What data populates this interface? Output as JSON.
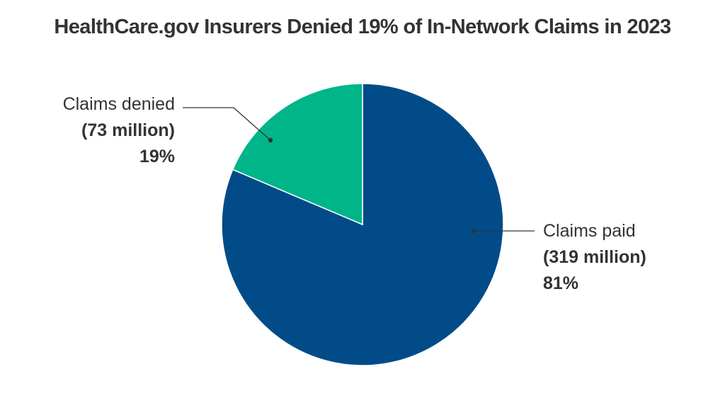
{
  "title": "HealthCare.gov Insurers Denied 19% of In-Network Claims in 2023",
  "colors": {
    "paid": "#024B89",
    "denied": "#00B588",
    "leader": "#333333"
  },
  "labels": {
    "denied": {
      "name": "Claims denied",
      "count": "(73 million)",
      "pct": "19%"
    },
    "paid": {
      "name": "Claims paid",
      "count": "(319 million)",
      "pct": "81%"
    }
  },
  "chart_data": {
    "type": "pie",
    "title": "HealthCare.gov Insurers Denied 19% of In-Network Claims in 2023",
    "categories": [
      "Claims paid",
      "Claims denied"
    ],
    "values": [
      319,
      73
    ],
    "units": "million claims",
    "percentages": [
      81,
      19
    ],
    "colors": [
      "#024B89",
      "#00B588"
    ],
    "annotations": [
      "Claims paid (319 million) 81%",
      "Claims denied (73 million) 19%"
    ],
    "legend": "none (direct labels with leader lines)"
  }
}
